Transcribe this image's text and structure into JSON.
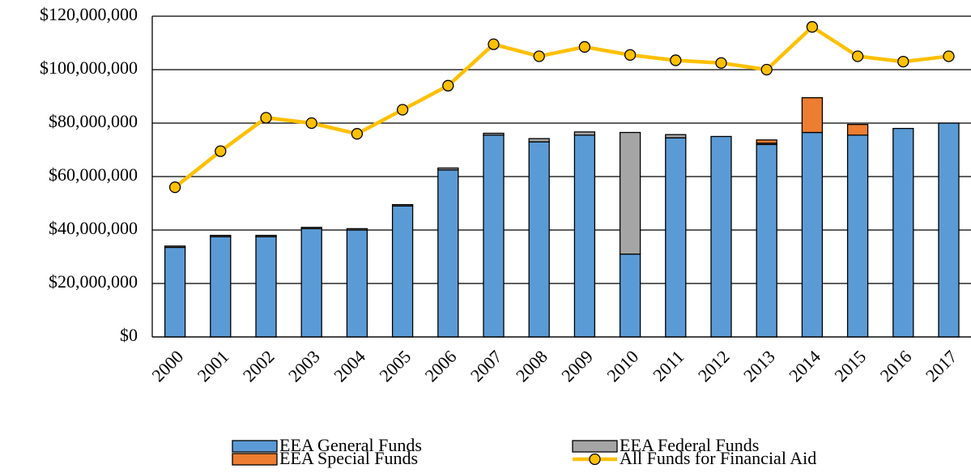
{
  "chart_data": {
    "type": "bar_line",
    "categories": [
      "2000",
      "2001",
      "2002",
      "2003",
      "2004",
      "2005",
      "2006",
      "2007",
      "2008",
      "2009",
      "2010",
      "2011",
      "2012",
      "2013",
      "2014",
      "2015",
      "2016",
      "2017"
    ],
    "series": [
      {
        "name": "EEA General Funds",
        "color": "#5b9bd5",
        "kind": "bar",
        "values": [
          33500000,
          37500000,
          37500000,
          40500000,
          40000000,
          49000000,
          62500000,
          75500000,
          73000000,
          75500000,
          31000000,
          74500000,
          75000000,
          72000000,
          76500000,
          75500000,
          78000000,
          80000000
        ]
      },
      {
        "name": "EEA Federal Funds",
        "color": "#a5a5a5",
        "kind": "bar",
        "values": [
          500000,
          500000,
          500000,
          500000,
          500000,
          500000,
          700000,
          700000,
          1200000,
          1200000,
          45500000,
          1200000,
          0,
          500000,
          0,
          0,
          0,
          0
        ]
      },
      {
        "name": "EEA Special Funds",
        "color": "#ed7d31",
        "kind": "bar",
        "values": [
          0,
          0,
          0,
          0,
          0,
          0,
          0,
          0,
          0,
          0,
          0,
          0,
          0,
          1200000,
          13000000,
          4000000,
          0,
          0
        ]
      },
      {
        "name": "All Funds for Financial Aid",
        "color": "#ffc000",
        "kind": "line",
        "values": [
          56000000,
          69500000,
          82000000,
          80000000,
          76000000,
          85000000,
          94000000,
          109500000,
          105000000,
          108500000,
          105500000,
          103500000,
          102500000,
          100000000,
          116000000,
          105000000,
          103000000,
          105000000
        ]
      }
    ],
    "ylim": [
      0,
      120000000
    ],
    "yticks": [
      {
        "value": 0,
        "label": "$0"
      },
      {
        "value": 20000000,
        "label": "$20,000,000"
      },
      {
        "value": 40000000,
        "label": "$40,000,000"
      },
      {
        "value": 60000000,
        "label": "$60,000,000"
      },
      {
        "value": 80000000,
        "label": "$80,000,000"
      },
      {
        "value": 100000000,
        "label": "$100,000,000"
      },
      {
        "value": 120000000,
        "label": "$120,000,000"
      }
    ],
    "grid": true,
    "legend": "bottom"
  }
}
